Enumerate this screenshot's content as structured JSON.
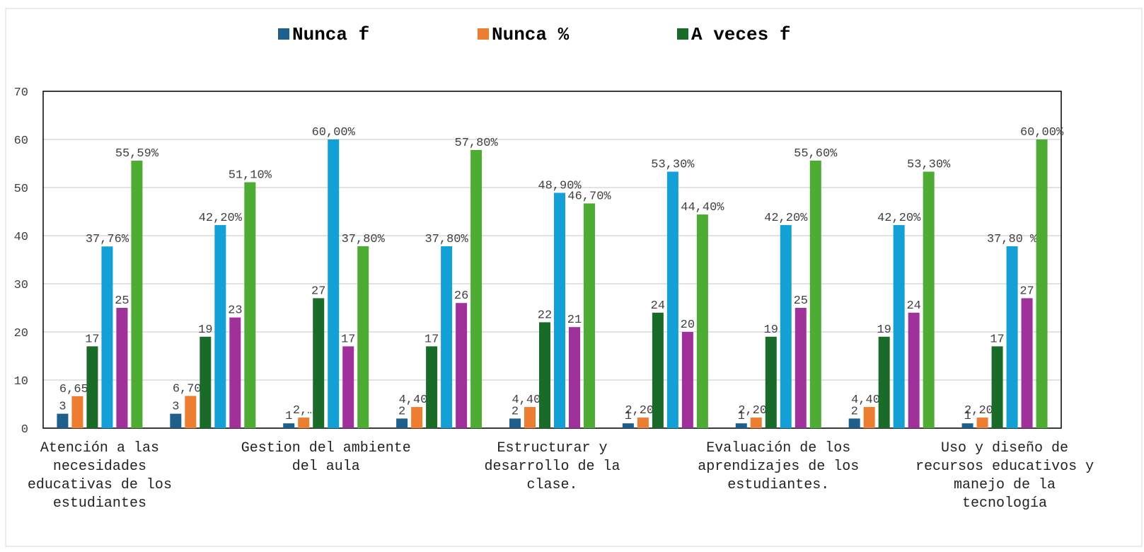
{
  "chart_data": {
    "type": "bar",
    "categories": [
      "Atención a las necesidades educativas de los estudiantes",
      null,
      "Gestion del ambiente del aula",
      null,
      "Estructurar y desarrollo de la clase.",
      null,
      "Evaluación de los aprendizajes de los estudiantes.",
      null,
      "Uso y diseño de recursos educativos y manejo de la tecnología"
    ],
    "series": [
      {
        "name": "Nunca f",
        "color": "#1f5f8b",
        "values": [
          3,
          3,
          1,
          2,
          2,
          1,
          1,
          2,
          1
        ]
      },
      {
        "name": "Nunca %",
        "color": "#ed7d31",
        "values": [
          6.65,
          6.7,
          2.2,
          4.4,
          4.4,
          2.2,
          2.2,
          4.4,
          2.2
        ],
        "value_labels": [
          "6,65%",
          "6,70%",
          "2,…",
          "4,40%",
          "4,40%",
          "2,20%",
          "2,20%",
          "4,40%",
          "2,20%"
        ]
      },
      {
        "name": "A veces  f",
        "color": "#1a6b2a",
        "values": [
          17,
          19,
          27,
          17,
          22,
          24,
          19,
          19,
          17
        ]
      },
      {
        "color": "#12a0d7",
        "values": [
          37.76,
          42.2,
          60.0,
          37.8,
          48.9,
          53.3,
          42.2,
          42.2,
          37.8
        ],
        "value_labels": [
          "37,76%",
          "42,20%",
          "60,00%",
          "37,80%",
          "48,90%",
          "53,30%",
          "42,20%",
          "42,20%",
          "37,80 %"
        ]
      },
      {
        "color": "#a0309a",
        "values": [
          25,
          23,
          17,
          26,
          21,
          20,
          25,
          24,
          27
        ]
      },
      {
        "color": "#4eab33",
        "values": [
          55.59,
          51.1,
          37.8,
          57.8,
          46.7,
          44.4,
          55.6,
          53.3,
          60.0
        ],
        "value_labels": [
          "55,59%",
          "51,10%",
          "37,80%",
          "57,80%",
          "46,70%",
          "44,40%",
          "55,60%",
          "53,30%",
          "60,00%"
        ]
      }
    ],
    "ylim": [
      0,
      70
    ],
    "yticks": [
      0,
      10,
      20,
      30,
      40,
      50,
      60,
      70
    ],
    "grid": true,
    "legend": "top"
  }
}
